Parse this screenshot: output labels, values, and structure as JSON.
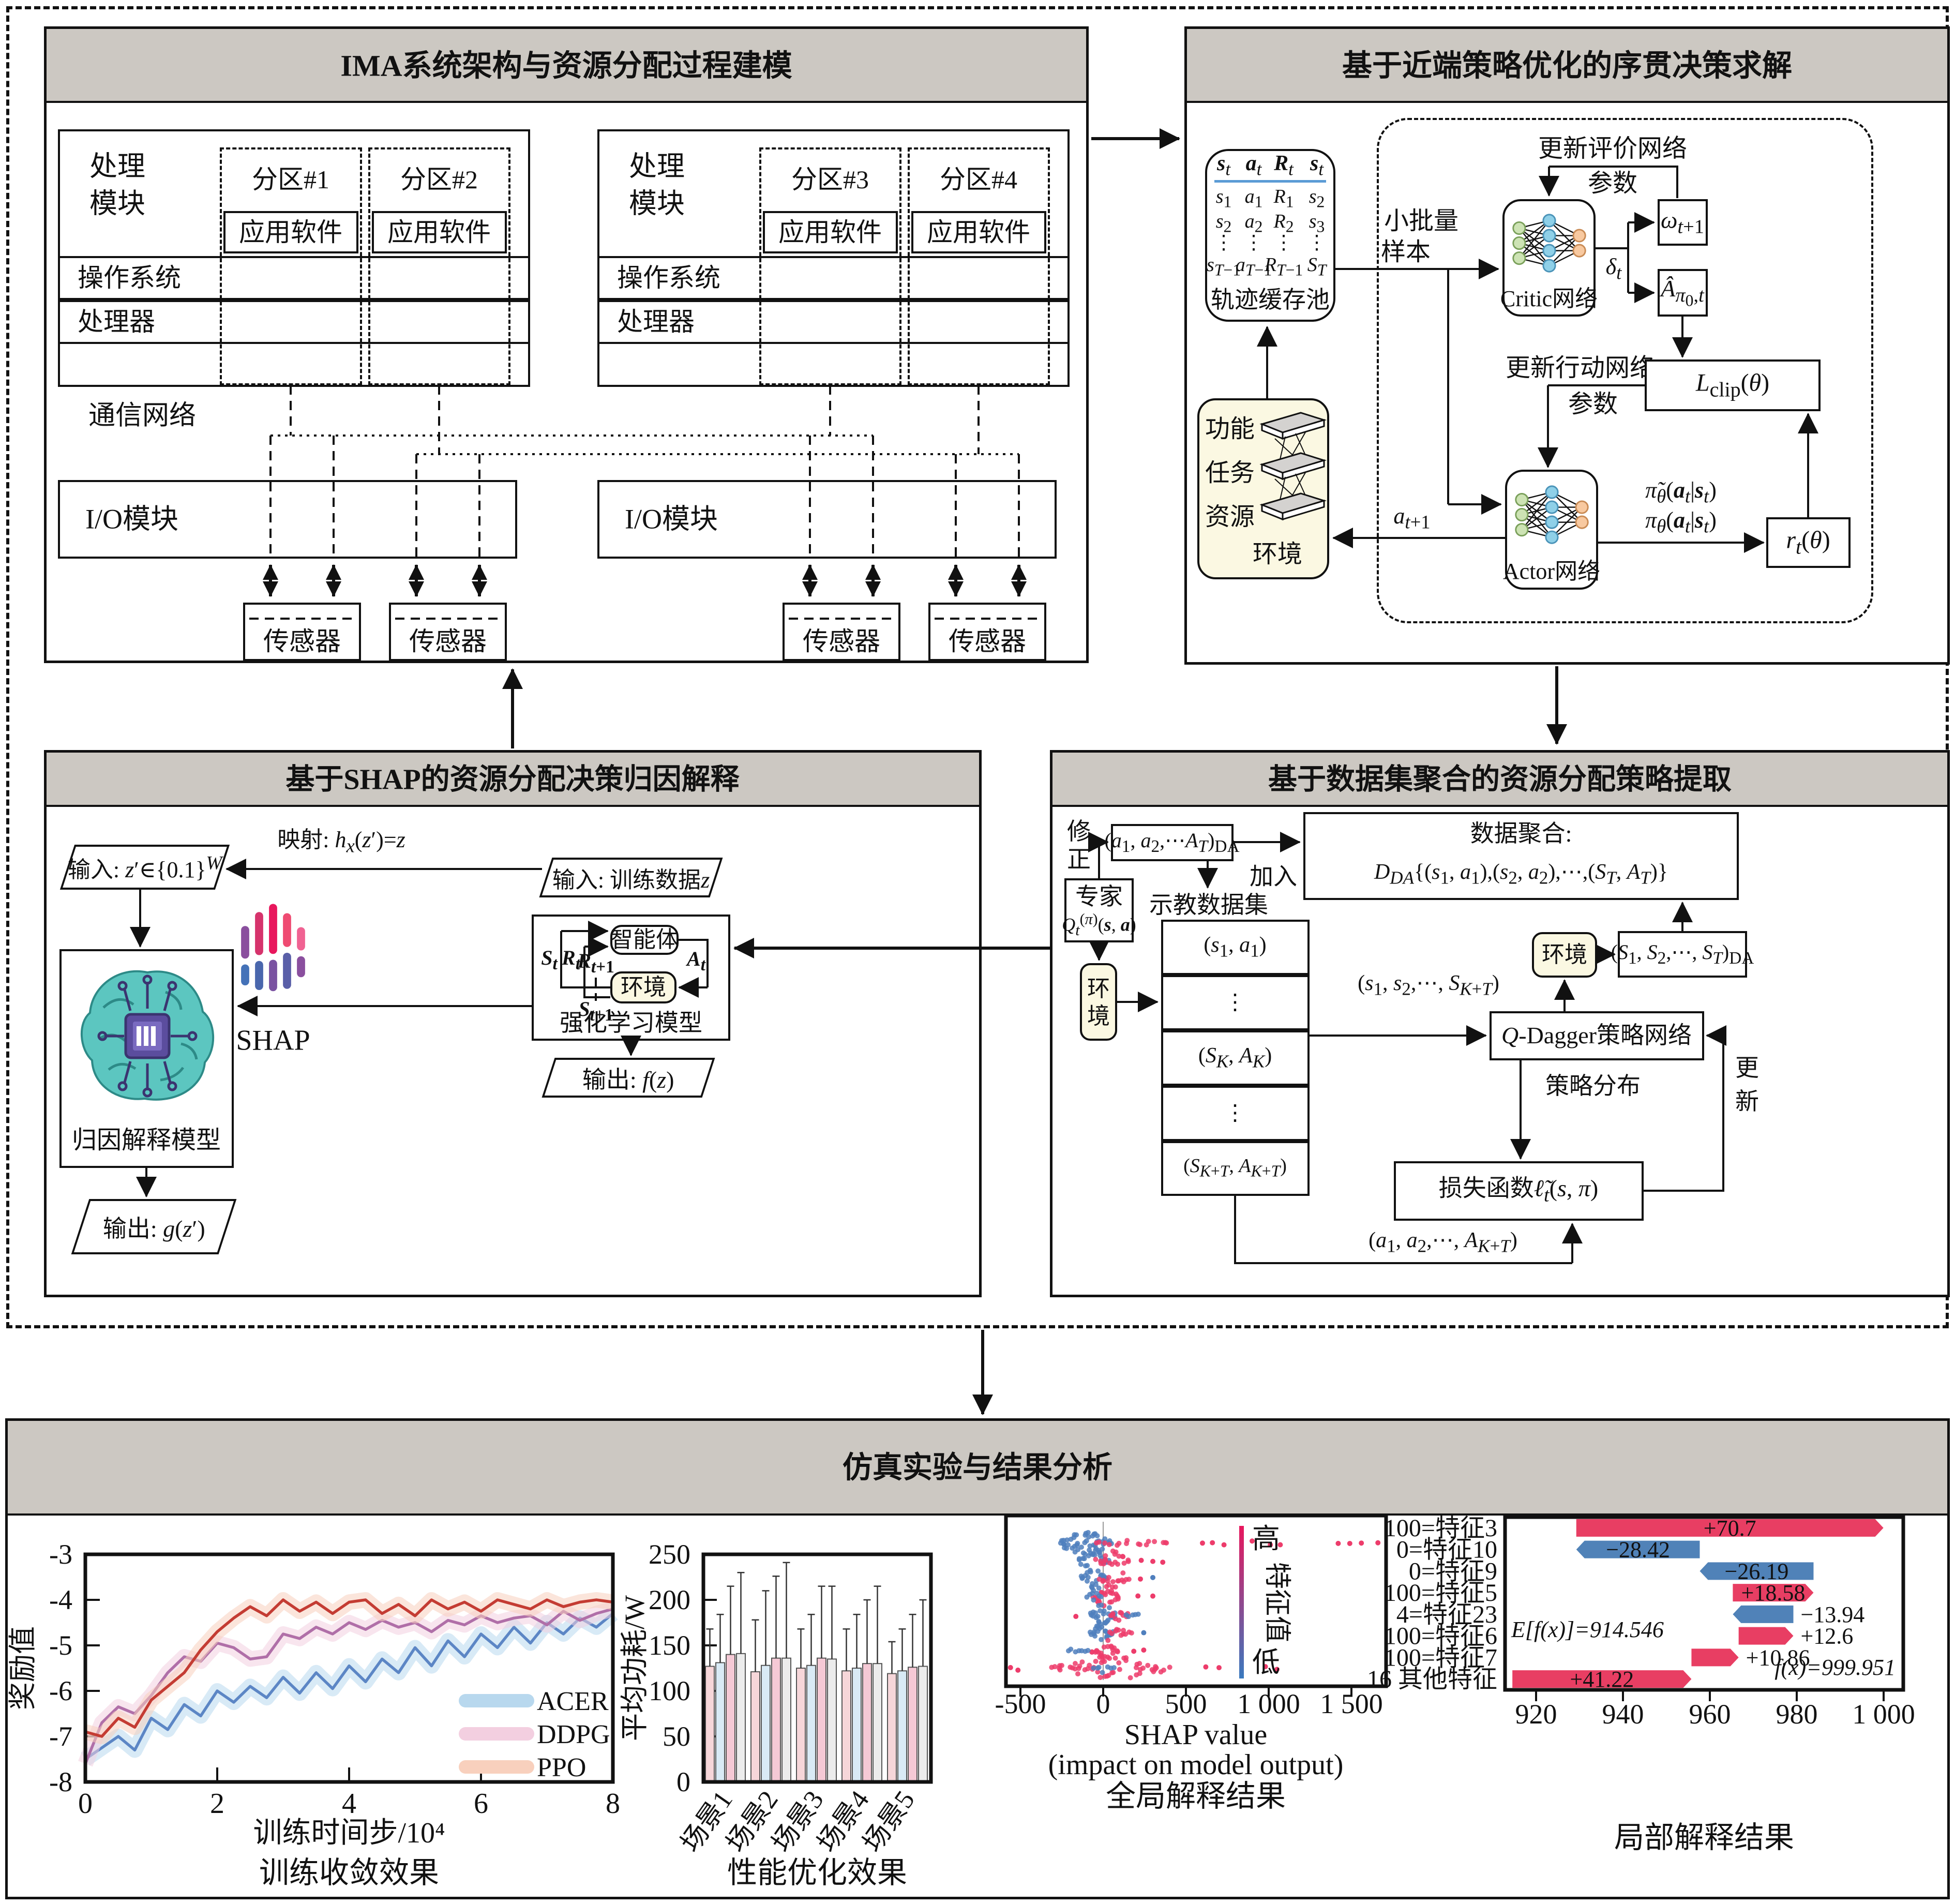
{
  "ima": {
    "title": "IMA系统架构与资源分配过程建模",
    "comm": "通信网络",
    "io": "I/O模块",
    "sensor": "传感器",
    "groups": [
      {
        "module": [
          "处理",
          "模块"
        ],
        "os": "操作系统",
        "cpu": "处理器",
        "partitions": [
          {
            "name": "分区#1",
            "app": "应用软件"
          },
          {
            "name": "分区#2",
            "app": "应用软件"
          }
        ]
      },
      {
        "module": [
          "处理",
          "模块"
        ],
        "os": "操作系统",
        "cpu": "处理器",
        "partitions": [
          {
            "name": "分区#3",
            "app": "应用软件"
          },
          {
            "name": "分区#4",
            "app": "应用软件"
          }
        ]
      }
    ]
  },
  "ppo": {
    "title": "基于近端策略优化的序贯决策求解",
    "pool": {
      "headers": [
        "<b><i>s</i></b><sub><i>t</i></sub>",
        "<b><i>a</i></b><sub><i>t</i></sub>",
        "<b><i>R</i></b><sub><i>t</i></sub>",
        "<b><i>s</i></b><sub><i>t</i></sub>"
      ],
      "rows": [
        [
          "<i>s</i><sub>1</sub>",
          "<i>a</i><sub>1</sub>",
          "<i>R</i><sub>1</sub>",
          "<i>s</i><sub>2</sub>"
        ],
        [
          "<i>s</i><sub>2</sub>",
          "<i>a</i><sub>2</sub>",
          "<i>R</i><sub>2</sub>",
          "<i>s</i><sub>3</sub>"
        ],
        [
          "⋮",
          "⋮",
          "⋮",
          "⋮"
        ],
        [
          "<i>s</i><sub><i>T</i>−1</sub>",
          "<i>a</i><sub><i>T</i>−1</sub>",
          "<i>R</i><sub><i>T</i>−1</sub>",
          "<i>S</i><sub><i>T</i></sub>"
        ]
      ],
      "caption": "轨迹缓存池"
    },
    "minibatch": [
      "小批量",
      "样本"
    ],
    "env": {
      "lines": [
        "功能",
        "任务",
        "资源"
      ],
      "label": "环境"
    },
    "critic": "Critic网络",
    "actor": "Actor网络",
    "upd_critic": [
      "更新评价网络",
      "参数"
    ],
    "upd_actor": [
      "更新行动网络",
      "参数"
    ],
    "omega": "<i>ω</i><sub><i>t</i>+1</sub>",
    "delta": "<i>δ</i><sub><i>t</i></sub>",
    "adv": "<i>Â</i><sub><i>π</i><sub>0</sub>,<i>t</i></sub>",
    "lclip": "<i>L</i><sub>clip</sub>(<i>θ</i>)",
    "rt": "<i>r</i><sub><i>t</i></sub>(<i>θ</i>)",
    "pi_tilde": "<i>π̃</i><sub><i>θ</i></sub>(<b><i>a</i></b><sub><i>t</i></sub>|<b><i>s</i></b><sub><i>t</i></sub>)",
    "pi": "<i>π</i><sub><i>θ</i></sub>(<b><i>a</i></b><sub><i>t</i></sub>|<b><i>s</i></b><sub><i>t</i></sub>)",
    "a_next": "<i>a</i><sub><i>t</i>+1</sub>"
  },
  "shap_panel": {
    "title": "基于SHAP的资源分配决策归因解释",
    "input_z": "输入: <i>z</i>′∈{0.1}<sup><i>W</i></sup>",
    "map": "映射: <i>h</i><sub><i>x</i></sub>(<i>z</i>′)=<i>z</i>",
    "input_train": "输入: 训练数据<i>z</i>",
    "brain": "归因解释模型",
    "shap": "SHAP",
    "out_g": "输出: <i>g</i>(<i>z</i>′)",
    "agent": "智能体",
    "env": "环境",
    "rl": "强化学习模型",
    "out_f": "输出: <i>f</i>(<i>z</i>)",
    "s_t": "<b><i>S</i></b><sub><i>t</i></sub>",
    "r_t": "<b><i>R</i></b><sub><i>t</i></sub>",
    "r_t1": "<b><i>R</i></b><sub><i>t</i>+1</sub>",
    "s_t1": "<b><i>S</i></b><sub><i>t</i>+1</sub>",
    "a_t": "<b><i>A</i></b><sub><i>t</i></sub>"
  },
  "dagger": {
    "title": "基于数据集聚合的资源分配策略提取",
    "fix": [
      "修",
      "正"
    ],
    "a_da": "(<i>a</i><sub>1</sub>, <i>a</i><sub>2</sub>,⋯<i>A</i><sub><i>T</i></sub>)<sub>DA</sub>",
    "agg1": "数据聚合:",
    "agg2": "<i>D</i><sub><i>DA</i></sub>{(<i>s</i><sub>1</sub>, <i>a</i><sub>1</sub>),(<i>s</i><sub>2</sub>, <i>a</i><sub>2</sub>),⋯,(<i>S</i><sub><i>T</i></sub>, <i>A</i><sub><i>T</i></sub>)}",
    "expert1": "专家",
    "expert2": "<i>Q</i><sub><i>t</i></sub><sup>(<i>π</i>)</sup>(<b><i>s</i></b>, <b><i>a</i></b>)",
    "env": [
      "环",
      "境"
    ],
    "demo": "示教数据集",
    "join": "加入",
    "table": [
      "(<i>s</i><sub>1</sub>, <i>a</i><sub>1</sub>)",
      "⋮",
      "(<i>S</i><sub><i>K</i></sub>, <i>A</i><sub><i>K</i></sub>)",
      "⋮",
      "(<i>S</i><sub><i>K</i>+<i>T</i></sub>, <i>A</i><sub><i>K</i>+<i>T</i></sub>)"
    ],
    "states": "(<i>s</i><sub>1</sub>, <i>s</i><sub>2</sub>,⋯, <i>S</i><sub><i>K</i>+<i>T</i></sub>)",
    "env2": "环境",
    "s_da": "(<i>S</i><sub>1</sub>, <i>S</i><sub>2</sub>,⋯, <i>S</i><sub><i>T</i></sub>)<sub>DA</sub>",
    "qd": "<i>Q</i>-Dagger策略网络",
    "dist": "策略分布",
    "upd": [
      "更",
      "新"
    ],
    "loss": "损失函数<i>ℓ̃</i><sub><i>t</i></sub>(<i>s</i>, <i>π</i>)",
    "actions": "(<i>a</i><sub>1</sub>, <i>a</i><sub>2</sub>,⋯, <i>A</i><sub><i>K</i>+<i>T</i></sub>)"
  },
  "sim": {
    "title": "仿真实验与结果分析"
  },
  "chart_data": [
    {
      "type": "line",
      "title": "训练收敛效果",
      "xlabel": "训练时间步/10⁴",
      "ylabel": "奖励值",
      "xlim": [
        0,
        8
      ],
      "ylim": [
        -8,
        -3
      ],
      "xticks": [
        0,
        2,
        4,
        6,
        8
      ],
      "yticks": [
        -3,
        -4,
        -5,
        -6,
        -7,
        -8
      ],
      "legend_position": "lower right",
      "x_step": 0.25,
      "series": [
        {
          "name": "ACER",
          "color": "#5c86c5",
          "band": "#b8d8ee",
          "values": [
            -7.5,
            -7.25,
            -7.0,
            -7.3,
            -6.6,
            -6.85,
            -6.3,
            -6.55,
            -6.0,
            -6.25,
            -5.9,
            -6.15,
            -5.7,
            -6.05,
            -5.6,
            -5.95,
            -5.45,
            -5.8,
            -5.3,
            -5.6,
            -5.05,
            -5.45,
            -4.9,
            -5.25,
            -4.75,
            -5.05,
            -4.6,
            -4.95,
            -4.5,
            -4.75,
            -4.4,
            -4.6,
            -4.3
          ]
        },
        {
          "name": "DDPG",
          "color": "#b06fa8",
          "band": "#f3cfe0",
          "values": [
            -7.6,
            -6.7,
            -6.35,
            -6.5,
            -6.1,
            -5.6,
            -5.25,
            -5.35,
            -4.95,
            -5.05,
            -5.3,
            -5.25,
            -4.75,
            -4.85,
            -4.6,
            -4.75,
            -4.5,
            -4.65,
            -4.45,
            -4.6,
            -4.5,
            -4.7,
            -4.45,
            -4.55,
            -4.35,
            -4.5,
            -4.4,
            -4.35,
            -4.55,
            -4.25,
            -4.45,
            -4.3,
            -4.2
          ]
        },
        {
          "name": "PPO",
          "color": "#c43c33",
          "band": "#f8d0bd",
          "values": [
            -6.9,
            -7.0,
            -6.6,
            -6.8,
            -6.2,
            -5.9,
            -5.6,
            -5.1,
            -4.7,
            -4.4,
            -4.15,
            -4.35,
            -4.0,
            -4.25,
            -4.05,
            -4.3,
            -4.05,
            -4.0,
            -4.3,
            -4.1,
            -4.35,
            -4.0,
            -4.2,
            -4.05,
            -4.25,
            -4.0,
            -4.1,
            -4.2,
            -4.0,
            -4.15,
            -4.05,
            -4.0,
            -4.05
          ]
        }
      ]
    },
    {
      "type": "bar",
      "title": "性能优化效果",
      "ylabel": "平均功耗/W",
      "ylim": [
        0,
        250
      ],
      "yticks": [
        0,
        50,
        100,
        150,
        200,
        250
      ],
      "categories": [
        "场景1",
        "场景2",
        "场景3",
        "场景4",
        "场景5"
      ],
      "series": [
        {
          "color": "#f6d6d9",
          "values": [
            127,
            121,
            125,
            122,
            119
          ],
          "err": [
            168,
            178,
            168,
            168,
            154
          ]
        },
        {
          "color": "#d9eaf5",
          "values": [
            131,
            128,
            128,
            125,
            122
          ],
          "err": [
            184,
            210,
            184,
            184,
            168
          ]
        },
        {
          "color": "#f5c9d5",
          "values": [
            140,
            136,
            136,
            130,
            126
          ],
          "err": [
            215,
            226,
            215,
            200,
            184
          ]
        },
        {
          "color": "#ececec",
          "values": [
            141,
            136,
            135,
            130,
            127
          ],
          "err": [
            230,
            241,
            215,
            215,
            200
          ]
        }
      ]
    },
    {
      "type": "beeswarm",
      "title": "全局解释结果",
      "xlabel_lines": [
        "SHAP value",
        "(impact on model output)"
      ],
      "xlim": [
        -590,
        1710
      ],
      "xticks": [
        -500,
        0,
        500,
        1000,
        1500
      ],
      "xtick_labels": [
        "-500",
        "0",
        "500",
        "1 000",
        "1 500"
      ],
      "colorbar": {
        "high": "高",
        "low": "低",
        "label": "特征值",
        "color_high": "#e8175d",
        "color_low": "#3a7abf"
      },
      "point_colors": {
        "r": "#ed3c6b",
        "b": "#4f7fbd"
      },
      "rows": [
        {
          "clusters": [
            {
              "c": "b",
              "x": -110,
              "s": 150,
              "n": 46,
              "j": 28
            },
            {
              "c": "r",
              "x": 180,
              "s": 220,
              "n": 16,
              "j": 6
            }
          ],
          "out": [
            {
              "x": 600,
              "c": "r"
            },
            {
              "x": 660,
              "c": "r"
            },
            {
              "x": 730,
              "c": "r"
            },
            {
              "x": 900,
              "c": "r"
            },
            {
              "x": 1010,
              "c": "r"
            },
            {
              "x": 1070,
              "c": "r"
            },
            {
              "x": 1420,
              "c": "r"
            },
            {
              "x": 1490,
              "c": "r"
            },
            {
              "x": 1560,
              "c": "r"
            },
            {
              "x": 1660,
              "c": "r"
            }
          ]
        },
        {
          "clusters": [
            {
              "c": "b",
              "x": -60,
              "s": 85,
              "n": 26,
              "j": 24
            },
            {
              "c": "r",
              "x": 60,
              "s": 95,
              "n": 20,
              "j": 20
            }
          ],
          "out": [
            {
              "x": 230,
              "c": "r"
            },
            {
              "x": 300,
              "c": "r"
            },
            {
              "x": 360,
              "c": "r"
            }
          ]
        },
        {
          "clusters": [
            {
              "c": "b",
              "x": -55,
              "s": 75,
              "n": 22,
              "j": 24
            },
            {
              "c": "r",
              "x": 70,
              "s": 85,
              "n": 16,
              "j": 18
            }
          ],
          "out": [
            {
              "x": 225,
              "c": "r"
            },
            {
              "x": 300,
              "c": "b"
            }
          ]
        },
        {
          "clusters": [
            {
              "c": "r",
              "x": 20,
              "s": 75,
              "n": 24,
              "j": 22
            },
            {
              "c": "b",
              "x": -55,
              "s": 40,
              "n": 7,
              "j": 10
            }
          ],
          "out": [
            {
              "x": 210,
              "c": "r"
            },
            {
              "x": 300,
              "c": "r"
            }
          ]
        },
        {
          "clusters": [
            {
              "c": "b",
              "x": 0,
              "s": 75,
              "n": 26,
              "j": 22
            },
            {
              "c": "r",
              "x": 95,
              "s": 55,
              "n": 10,
              "j": 12
            },
            {
              "c": "b",
              "x": 175,
              "s": 40,
              "n": 5,
              "j": 6
            }
          ],
          "out": [
            {
              "x": -165,
              "c": "r"
            }
          ]
        },
        {
          "clusters": [
            {
              "c": "b",
              "x": -10,
              "s": 65,
              "n": 22,
              "j": 20
            },
            {
              "c": "r",
              "x": 105,
              "s": 60,
              "n": 11,
              "j": 8
            }
          ],
          "out": [
            {
              "x": 245,
              "c": "b"
            }
          ]
        },
        {
          "clusters": [
            {
              "c": "r",
              "x": 10,
              "s": 75,
              "n": 24,
              "j": 22
            },
            {
              "c": "b",
              "x": -150,
              "s": 60,
              "n": 7,
              "j": 7
            }
          ],
          "out": [
            {
              "x": 185,
              "c": "r"
            },
            {
              "x": 245,
              "c": "r"
            }
          ]
        },
        {
          "clusters": [
            {
              "c": "r",
              "x": 40,
              "s": 340,
              "n": 52,
              "j": 24
            },
            {
              "c": "b",
              "x": 0,
              "s": 60,
              "n": 7,
              "j": 10
            }
          ],
          "out": [
            {
              "x": -560,
              "c": "r"
            },
            {
              "x": -515,
              "c": "r"
            },
            {
              "x": 620,
              "c": "r"
            },
            {
              "x": 700,
              "c": "r"
            },
            {
              "x": 980,
              "c": "r"
            },
            {
              "x": 1050,
              "c": "r"
            }
          ]
        }
      ]
    },
    {
      "type": "waterfall",
      "title": "局部解释结果",
      "base": 914.546,
      "base_label": "E[f(x)]=914.546",
      "fx": 999.951,
      "fx_label": "f(x)=999.951",
      "xticks": [
        920,
        940,
        960,
        980,
        1000
      ],
      "xtick_labels": [
        "920",
        "940",
        "960",
        "980",
        "1 000"
      ],
      "colors": {
        "pos": "#e83e63",
        "neg": "#5082b8"
      },
      "rows": [
        {
          "label": "100=特征3",
          "value": 70.7,
          "text": "+70.7"
        },
        {
          "label": "0=特征10",
          "value": -28.42,
          "text": "−28.42"
        },
        {
          "label": "0=特征9",
          "value": -26.19,
          "text": "−26.19"
        },
        {
          "label": "100=特征5",
          "value": 18.58,
          "text": "+18.58"
        },
        {
          "label": "4=特征23",
          "value": -13.94,
          "text": "−13.94"
        },
        {
          "label": "100=特征6",
          "value": 12.6,
          "text": "+12.6"
        },
        {
          "label": "100=特征7",
          "value": 10.86,
          "text": "+10.86"
        },
        {
          "label": "16 其他特征",
          "value": 41.22,
          "text": "+41.22"
        }
      ]
    }
  ]
}
